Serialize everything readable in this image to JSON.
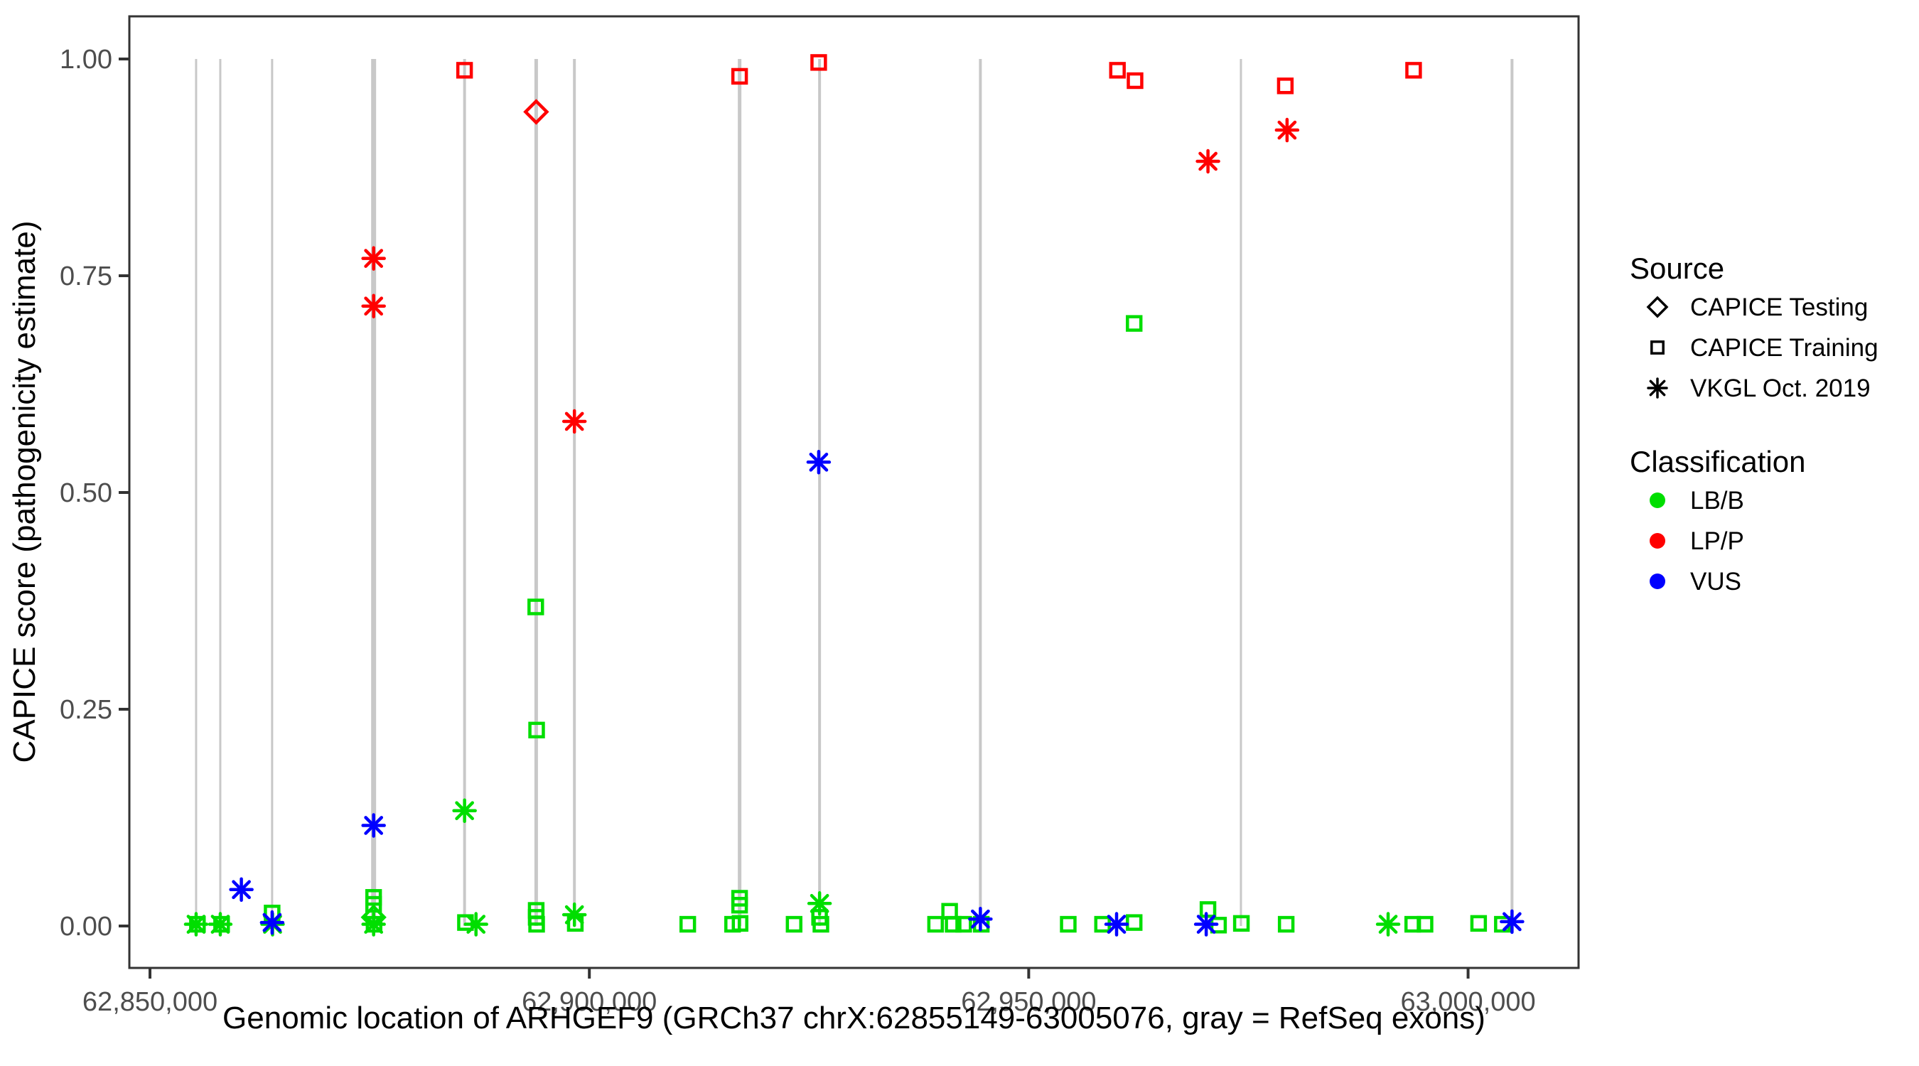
{
  "chart_data": {
    "type": "scatter",
    "title": "",
    "xlabel": "Genomic location of ARHGEF9 (GRCh37 chrX:62855149-63005076, gray = RefSeq exons)",
    "ylabel": "CAPICE score (pathogenicity estimate)",
    "x_domain": [
      62847653,
      63012572
    ],
    "y_domain": [
      0,
      1
    ],
    "grid": false,
    "legend_position": "right",
    "x_ticks": [
      {
        "value": 62850000,
        "label": "62,850,000"
      },
      {
        "value": 62900000,
        "label": "62,900,000"
      },
      {
        "value": 62950000,
        "label": "62,950,000"
      },
      {
        "value": 63000000,
        "label": "63,000,000"
      }
    ],
    "y_ticks": [
      {
        "value": 0.0,
        "label": "0.00"
      },
      {
        "value": 0.25,
        "label": "0.25"
      },
      {
        "value": 0.5,
        "label": "0.50"
      },
      {
        "value": 0.75,
        "label": "0.75"
      },
      {
        "value": 1.0,
        "label": "1.00"
      }
    ],
    "colors": {
      "LB/B": "#00DE00",
      "LP/P": "#FF0000",
      "VUS": "#0000FF",
      "exon": "#C8C8C8",
      "border": "#333333",
      "tick_label": "#4d4d4d"
    },
    "shape_by_source": {
      "CAPICE Testing": "diamond",
      "CAPICE Training": "square",
      "VKGL Oct. 2019": "asterisk"
    },
    "exons": [
      {
        "pos": 62855250,
        "w": 3
      },
      {
        "pos": 62858000,
        "w": 3
      },
      {
        "pos": 62863900,
        "w": 3
      },
      {
        "pos": 62875450,
        "w": 7
      },
      {
        "pos": 62885800,
        "w": 4
      },
      {
        "pos": 62893950,
        "w": 5
      },
      {
        "pos": 62898300,
        "w": 4
      },
      {
        "pos": 62917100,
        "w": 5
      },
      {
        "pos": 62926200,
        "w": 4
      },
      {
        "pos": 62944500,
        "w": 4
      },
      {
        "pos": 62974150,
        "w": 3
      },
      {
        "pos": 63005000,
        "w": 4
      }
    ],
    "points": [
      {
        "x": 62962000,
        "y": 0.695,
        "source": "CAPICE Training",
        "classification": "LB/B"
      },
      {
        "x": 62893900,
        "y": 0.368,
        "source": "CAPICE Training",
        "classification": "LB/B"
      },
      {
        "x": 62894000,
        "y": 0.226,
        "source": "CAPICE Training",
        "classification": "LB/B"
      },
      {
        "x": 62885800,
        "y": 0.133,
        "source": "VKGL Oct. 2019",
        "classification": "LB/B"
      },
      {
        "x": 62855250,
        "y": 0.002,
        "source": "VKGL Oct. 2019",
        "classification": "LB/B"
      },
      {
        "x": 62855400,
        "y": 0.002,
        "source": "CAPICE Training",
        "classification": "LB/B"
      },
      {
        "x": 62858000,
        "y": 0.002,
        "source": "VKGL Oct. 2019",
        "classification": "LB/B"
      },
      {
        "x": 62858150,
        "y": 0.002,
        "source": "CAPICE Training",
        "classification": "LB/B"
      },
      {
        "x": 62863900,
        "y": 0.015,
        "source": "CAPICE Training",
        "classification": "LB/B"
      },
      {
        "x": 62863950,
        "y": 0.002,
        "source": "VKGL Oct. 2019",
        "classification": "LB/B"
      },
      {
        "x": 62875450,
        "y": 0.033,
        "source": "CAPICE Training",
        "classification": "LB/B"
      },
      {
        "x": 62875450,
        "y": 0.025,
        "source": "CAPICE Training",
        "classification": "LB/B"
      },
      {
        "x": 62875450,
        "y": 0.01,
        "source": "CAPICE Testing",
        "classification": "LB/B"
      },
      {
        "x": 62875500,
        "y": 0.002,
        "source": "CAPICE Training",
        "classification": "LB/B"
      },
      {
        "x": 62875450,
        "y": 0.002,
        "source": "VKGL Oct. 2019",
        "classification": "LB/B"
      },
      {
        "x": 62885900,
        "y": 0.004,
        "source": "CAPICE Training",
        "classification": "LB/B"
      },
      {
        "x": 62887100,
        "y": 0.002,
        "source": "VKGL Oct. 2019",
        "classification": "LB/B"
      },
      {
        "x": 62893950,
        "y": 0.018,
        "source": "CAPICE Training",
        "classification": "LB/B"
      },
      {
        "x": 62893950,
        "y": 0.01,
        "source": "CAPICE Training",
        "classification": "LB/B"
      },
      {
        "x": 62894000,
        "y": 0.002,
        "source": "CAPICE Training",
        "classification": "LB/B"
      },
      {
        "x": 62898300,
        "y": 0.013,
        "source": "VKGL Oct. 2019",
        "classification": "LB/B"
      },
      {
        "x": 62898400,
        "y": 0.003,
        "source": "CAPICE Training",
        "classification": "LB/B"
      },
      {
        "x": 62911200,
        "y": 0.002,
        "source": "CAPICE Training",
        "classification": "LB/B"
      },
      {
        "x": 62917100,
        "y": 0.032,
        "source": "CAPICE Training",
        "classification": "LB/B"
      },
      {
        "x": 62917100,
        "y": 0.024,
        "source": "CAPICE Training",
        "classification": "LB/B"
      },
      {
        "x": 62917150,
        "y": 0.003,
        "source": "CAPICE Training",
        "classification": "LB/B"
      },
      {
        "x": 62916300,
        "y": 0.002,
        "source": "CAPICE Training",
        "classification": "LB/B"
      },
      {
        "x": 62923300,
        "y": 0.002,
        "source": "CAPICE Training",
        "classification": "LB/B"
      },
      {
        "x": 62926200,
        "y": 0.026,
        "source": "VKGL Oct. 2019",
        "classification": "LB/B"
      },
      {
        "x": 62926200,
        "y": 0.01,
        "source": "CAPICE Training",
        "classification": "LB/B"
      },
      {
        "x": 62926350,
        "y": 0.002,
        "source": "CAPICE Training",
        "classification": "LB/B"
      },
      {
        "x": 62941000,
        "y": 0.017,
        "source": "CAPICE Training",
        "classification": "LB/B"
      },
      {
        "x": 62939400,
        "y": 0.002,
        "source": "CAPICE Training",
        "classification": "LB/B"
      },
      {
        "x": 62941400,
        "y": 0.002,
        "source": "CAPICE Training",
        "classification": "LB/B"
      },
      {
        "x": 62942600,
        "y": 0.002,
        "source": "CAPICE Training",
        "classification": "LB/B"
      },
      {
        "x": 62944600,
        "y": 0.002,
        "source": "CAPICE Training",
        "classification": "LB/B"
      },
      {
        "x": 62954500,
        "y": 0.002,
        "source": "CAPICE Training",
        "classification": "LB/B"
      },
      {
        "x": 62958400,
        "y": 0.002,
        "source": "CAPICE Training",
        "classification": "LB/B"
      },
      {
        "x": 62962000,
        "y": 0.004,
        "source": "CAPICE Training",
        "classification": "LB/B"
      },
      {
        "x": 62970400,
        "y": 0.019,
        "source": "CAPICE Training",
        "classification": "LB/B"
      },
      {
        "x": 62971600,
        "y": 0.001,
        "source": "CAPICE Training",
        "classification": "LB/B"
      },
      {
        "x": 62974200,
        "y": 0.003,
        "source": "CAPICE Training",
        "classification": "LB/B"
      },
      {
        "x": 62979300,
        "y": 0.002,
        "source": "CAPICE Training",
        "classification": "LB/B"
      },
      {
        "x": 62990900,
        "y": 0.002,
        "source": "VKGL Oct. 2019",
        "classification": "LB/B"
      },
      {
        "x": 62993700,
        "y": 0.002,
        "source": "CAPICE Training",
        "classification": "LB/B"
      },
      {
        "x": 62995100,
        "y": 0.002,
        "source": "CAPICE Training",
        "classification": "LB/B"
      },
      {
        "x": 63001200,
        "y": 0.003,
        "source": "CAPICE Training",
        "classification": "LB/B"
      },
      {
        "x": 63003900,
        "y": 0.002,
        "source": "CAPICE Training",
        "classification": "LB/B"
      },
      {
        "x": 62926100,
        "y": 0.535,
        "source": "VKGL Oct. 2019",
        "classification": "VUS"
      },
      {
        "x": 62875450,
        "y": 0.116,
        "source": "VKGL Oct. 2019",
        "classification": "VUS"
      },
      {
        "x": 62860400,
        "y": 0.042,
        "source": "VKGL Oct. 2019",
        "classification": "VUS"
      },
      {
        "x": 62863900,
        "y": 0.004,
        "source": "VKGL Oct. 2019",
        "classification": "VUS"
      },
      {
        "x": 62944500,
        "y": 0.008,
        "source": "VKGL Oct. 2019",
        "classification": "VUS"
      },
      {
        "x": 62960000,
        "y": 0.002,
        "source": "VKGL Oct. 2019",
        "classification": "VUS"
      },
      {
        "x": 62970200,
        "y": 0.002,
        "source": "VKGL Oct. 2019",
        "classification": "VUS"
      },
      {
        "x": 63005000,
        "y": 0.005,
        "source": "VKGL Oct. 2019",
        "classification": "VUS"
      },
      {
        "x": 62885800,
        "y": 0.987,
        "source": "CAPICE Training",
        "classification": "LP/P"
      },
      {
        "x": 62893950,
        "y": 0.939,
        "source": "CAPICE Testing",
        "classification": "LP/P"
      },
      {
        "x": 62917100,
        "y": 0.98,
        "source": "CAPICE Training",
        "classification": "LP/P"
      },
      {
        "x": 62926100,
        "y": 0.996,
        "source": "CAPICE Training",
        "classification": "LP/P"
      },
      {
        "x": 62960100,
        "y": 0.987,
        "source": "CAPICE Training",
        "classification": "LP/P"
      },
      {
        "x": 62962100,
        "y": 0.975,
        "source": "CAPICE Training",
        "classification": "LP/P"
      },
      {
        "x": 62979200,
        "y": 0.969,
        "source": "CAPICE Training",
        "classification": "LP/P"
      },
      {
        "x": 62993800,
        "y": 0.987,
        "source": "CAPICE Training",
        "classification": "LP/P"
      },
      {
        "x": 62875450,
        "y": 0.77,
        "source": "VKGL Oct. 2019",
        "classification": "LP/P"
      },
      {
        "x": 62875450,
        "y": 0.715,
        "source": "VKGL Oct. 2019",
        "classification": "LP/P"
      },
      {
        "x": 62898300,
        "y": 0.582,
        "source": "VKGL Oct. 2019",
        "classification": "LP/P"
      },
      {
        "x": 62970400,
        "y": 0.882,
        "source": "VKGL Oct. 2019",
        "classification": "LP/P"
      },
      {
        "x": 62979400,
        "y": 0.918,
        "source": "VKGL Oct. 2019",
        "classification": "LP/P"
      }
    ]
  },
  "legend": {
    "source_title": "Source",
    "source_items": [
      {
        "label": "CAPICE Testing",
        "shape": "diamond"
      },
      {
        "label": "CAPICE Training",
        "shape": "square"
      },
      {
        "label": "VKGL Oct. 2019",
        "shape": "asterisk"
      }
    ],
    "class_title": "Classification",
    "class_items": [
      {
        "label": "LB/B",
        "color": "#00DE00"
      },
      {
        "label": "LP/P",
        "color": "#FF0000"
      },
      {
        "label": "VUS",
        "color": "#0000FF"
      }
    ]
  }
}
